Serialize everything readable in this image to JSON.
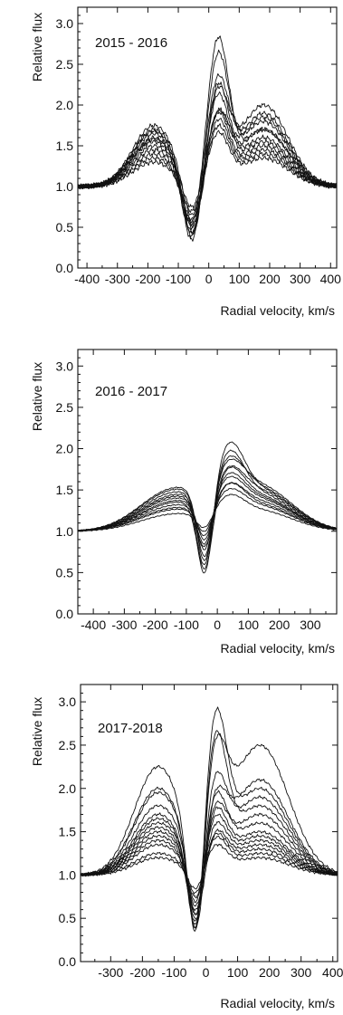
{
  "chart_data": [
    {
      "type": "line",
      "title": "",
      "annotation": "2015 - 2016",
      "xlabel": "Radial velocity, km/s",
      "ylabel": "Relative flux",
      "xlim": [
        -430,
        420
      ],
      "ylim": [
        0.0,
        3.2
      ],
      "xticks": [
        -400,
        -300,
        -200,
        -100,
        0,
        100,
        200,
        300,
        400
      ],
      "xtick_labels": [
        "-400",
        "-300",
        "-200",
        "-100",
        "0",
        "100",
        "200",
        "300",
        "400"
      ],
      "yticks": [
        0.0,
        0.5,
        1.0,
        1.5,
        2.0,
        2.5,
        3.0
      ],
      "ytick_labels": [
        "0.0",
        "0.5",
        "1.0",
        "1.5",
        "2.0",
        "2.5",
        "3.0"
      ],
      "grid": false,
      "profile_model": {
        "blue_emission": {
          "center": -180,
          "width": 70
        },
        "absorption": {
          "center": -55,
          "width": 30
        },
        "red_peak": {
          "center": 30,
          "width": 35
        },
        "red_emission": {
          "center": 180,
          "width": 80
        },
        "noise": 0.035
      },
      "series": [
        {
          "values": {
            "blue_peak": 1.7,
            "min": 0.55,
            "red_peak": 3.1,
            "red_shoulder": 1.7
          }
        },
        {
          "values": {
            "blue_peak": 1.65,
            "min": 0.4,
            "red_peak": 2.95,
            "red_shoulder": 1.8
          }
        },
        {
          "values": {
            "blue_peak": 1.75,
            "min": 0.65,
            "red_peak": 2.7,
            "red_shoulder": 1.9
          }
        },
        {
          "values": {
            "blue_peak": 1.55,
            "min": 0.35,
            "red_peak": 2.5,
            "red_shoulder": 1.6
          }
        },
        {
          "values": {
            "blue_peak": 1.6,
            "min": 0.5,
            "red_peak": 2.35,
            "red_shoulder": 1.55
          }
        },
        {
          "values": {
            "blue_peak": 1.45,
            "min": 0.6,
            "red_peak": 2.2,
            "red_shoulder": 1.7
          }
        },
        {
          "values": {
            "blue_peak": 1.5,
            "min": 0.75,
            "red_peak": 2.1,
            "red_shoulder": 1.5
          }
        },
        {
          "values": {
            "blue_peak": 1.4,
            "min": 0.45,
            "red_peak": 2.0,
            "red_shoulder": 1.45
          }
        },
        {
          "values": {
            "blue_peak": 1.35,
            "min": 0.58,
            "red_peak": 1.9,
            "red_shoulder": 1.4
          }
        },
        {
          "values": {
            "blue_peak": 1.3,
            "min": 0.7,
            "red_peak": 1.8,
            "red_shoulder": 1.35
          }
        },
        {
          "values": {
            "blue_peak": 1.68,
            "min": 0.42,
            "red_peak": 2.6,
            "red_shoulder": 2.0
          }
        },
        {
          "values": {
            "blue_peak": 1.58,
            "min": 0.52,
            "red_peak": 2.25,
            "red_shoulder": 1.85
          }
        }
      ]
    },
    {
      "type": "line",
      "title": "",
      "annotation": "2016 - 2017",
      "xlabel": "Radial velocity, km/s",
      "ylabel": "Relative flux",
      "xlim": [
        -450,
        385
      ],
      "ylim": [
        0.0,
        3.2
      ],
      "xticks": [
        -400,
        -300,
        -200,
        -100,
        0,
        100,
        200,
        300
      ],
      "xtick_labels": [
        "-400",
        "-300",
        "-200",
        "-100",
        "0",
        "100",
        "200",
        "300"
      ],
      "yticks": [
        0.0,
        0.5,
        1.0,
        1.5,
        2.0,
        2.5,
        3.0
      ],
      "ytick_labels": [
        "0.0",
        "0.5",
        "1.0",
        "1.5",
        "2.0",
        "2.5",
        "3.0"
      ],
      "grid": false,
      "profile_model": {
        "blue_emission": {
          "center": -140,
          "width": 110
        },
        "absorption": {
          "center": -40,
          "width": 25
        },
        "red_peak": {
          "center": 40,
          "width": 45
        },
        "red_emission": {
          "center": 130,
          "width": 110
        },
        "noise": 0.008
      },
      "series": [
        {
          "values": {
            "blue_peak": 1.45,
            "min": 0.5,
            "red_peak": 1.88,
            "red_shoulder": 1.5
          }
        },
        {
          "values": {
            "blue_peak": 1.4,
            "min": 0.6,
            "red_peak": 1.8,
            "red_shoulder": 1.45
          }
        },
        {
          "values": {
            "blue_peak": 1.5,
            "min": 0.7,
            "red_peak": 1.65,
            "red_shoulder": 1.55
          }
        },
        {
          "values": {
            "blue_peak": 1.35,
            "min": 0.85,
            "red_peak": 1.55,
            "red_shoulder": 1.4
          }
        },
        {
          "values": {
            "blue_peak": 1.3,
            "min": 0.95,
            "red_peak": 1.45,
            "red_shoulder": 1.35
          }
        },
        {
          "values": {
            "blue_peak": 1.25,
            "min": 1.0,
            "red_peak": 1.4,
            "red_shoulder": 1.3
          }
        },
        {
          "values": {
            "blue_peak": 1.42,
            "min": 0.78,
            "red_peak": 1.6,
            "red_shoulder": 1.48
          }
        },
        {
          "values": {
            "blue_peak": 1.38,
            "min": 0.9,
            "red_peak": 1.5,
            "red_shoulder": 1.38
          }
        },
        {
          "values": {
            "blue_peak": 1.2,
            "min": 1.05,
            "red_peak": 1.35,
            "red_shoulder": 1.25
          }
        },
        {
          "values": {
            "blue_peak": 1.48,
            "min": 0.65,
            "red_peak": 1.7,
            "red_shoulder": 1.52
          }
        },
        {
          "values": {
            "blue_peak": 1.33,
            "min": 0.55,
            "red_peak": 1.62,
            "red_shoulder": 1.42
          }
        },
        {
          "values": {
            "blue_peak": 1.27,
            "min": 0.82,
            "red_peak": 1.46,
            "red_shoulder": 1.32
          }
        }
      ]
    },
    {
      "type": "line",
      "title": "",
      "annotation": "2017-2018",
      "xlabel": "Radial velocity, km/s",
      "ylabel": "Relative flux",
      "xlim": [
        -395,
        415
      ],
      "ylim": [
        0.0,
        3.2
      ],
      "xticks": [
        -300,
        -200,
        -100,
        0,
        100,
        200,
        300,
        400
      ],
      "xtick_labels": [
        "-300",
        "-200",
        "-100",
        "0",
        "100",
        "200",
        "300",
        "400"
      ],
      "yticks": [
        0.0,
        0.5,
        1.0,
        1.5,
        2.0,
        2.5,
        3.0
      ],
      "ytick_labels": [
        "0.0",
        "0.5",
        "1.0",
        "1.5",
        "2.0",
        "2.5",
        "3.0"
      ],
      "grid": false,
      "profile_model": {
        "blue_emission": {
          "center": -150,
          "width": 75
        },
        "absorption": {
          "center": -30,
          "width": 25
        },
        "red_peak": {
          "center": 30,
          "width": 35
        },
        "red_emission": {
          "center": 170,
          "width": 90
        },
        "noise": 0.02
      },
      "series": [
        {
          "values": {
            "blue_peak": 2.25,
            "min": 0.38,
            "red_peak": 3.15,
            "red_shoulder": 2.0
          }
        },
        {
          "values": {
            "blue_peak": 2.0,
            "min": 0.45,
            "red_peak": 2.85,
            "red_shoulder": 1.8
          }
        },
        {
          "values": {
            "blue_peak": 1.8,
            "min": 0.55,
            "red_peak": 2.25,
            "red_shoulder": 2.1
          }
        },
        {
          "values": {
            "blue_peak": 1.7,
            "min": 0.4,
            "red_peak": 2.1,
            "red_shoulder": 1.6
          }
        },
        {
          "values": {
            "blue_peak": 1.6,
            "min": 0.6,
            "red_peak": 2.0,
            "red_shoulder": 1.7
          }
        },
        {
          "values": {
            "blue_peak": 1.55,
            "min": 0.5,
            "red_peak": 1.9,
            "red_shoulder": 1.5
          }
        },
        {
          "values": {
            "blue_peak": 1.5,
            "min": 0.7,
            "red_peak": 1.8,
            "red_shoulder": 1.45
          }
        },
        {
          "values": {
            "blue_peak": 1.45,
            "min": 0.65,
            "red_peak": 1.7,
            "red_shoulder": 1.4
          }
        },
        {
          "values": {
            "blue_peak": 1.4,
            "min": 0.55,
            "red_peak": 1.6,
            "red_shoulder": 1.35
          }
        },
        {
          "values": {
            "blue_peak": 1.35,
            "min": 0.75,
            "red_peak": 1.55,
            "red_shoulder": 1.3
          }
        },
        {
          "values": {
            "blue_peak": 1.95,
            "min": 0.42,
            "red_peak": 2.95,
            "red_shoulder": 2.5
          }
        },
        {
          "values": {
            "blue_peak": 1.25,
            "min": 0.8,
            "red_peak": 1.5,
            "red_shoulder": 1.25
          }
        },
        {
          "values": {
            "blue_peak": 1.65,
            "min": 0.48,
            "red_peak": 2.4,
            "red_shoulder": 1.9
          }
        },
        {
          "values": {
            "blue_peak": 1.2,
            "min": 0.85,
            "red_peak": 1.4,
            "red_shoulder": 1.2
          }
        }
      ]
    }
  ]
}
